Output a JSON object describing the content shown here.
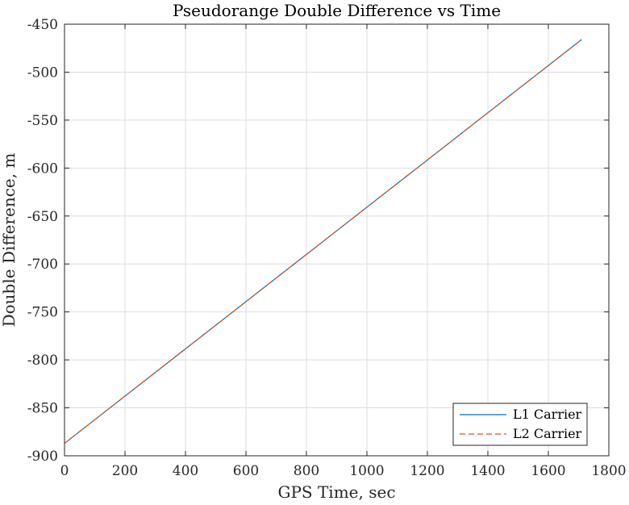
{
  "chart_data": {
    "type": "line",
    "title": "Pseudorange Double Difference vs Time",
    "xlabel": "GPS Time, sec",
    "ylabel": "Double Difference, m",
    "xlim": [
      0,
      1800
    ],
    "ylim": [
      -900,
      -450
    ],
    "xticks": [
      0,
      200,
      400,
      600,
      800,
      1000,
      1200,
      1400,
      1600,
      1800
    ],
    "yticks": [
      -450,
      -500,
      -550,
      -600,
      -650,
      -700,
      -750,
      -800,
      -850,
      -900
    ],
    "xtick_labels": [
      "0",
      "200",
      "400",
      "600",
      "800",
      "1000",
      "1200",
      "1400",
      "1600",
      "1800"
    ],
    "ytick_labels": [
      "-450",
      "-500",
      "-550",
      "-600",
      "-650",
      "-700",
      "-750",
      "-800",
      "-850",
      "-900"
    ],
    "grid": true,
    "legend_position": "bottom-right",
    "series": [
      {
        "name": "L1 Carrier",
        "color": "#0072BD",
        "style": "solid",
        "x": [
          0,
          1710
        ],
        "y": [
          -887,
          -466
        ]
      },
      {
        "name": "L2 Carrier",
        "color": "#D95319",
        "style": "dashed",
        "x": [
          0,
          1710
        ],
        "y": [
          -887,
          -466
        ]
      }
    ]
  }
}
